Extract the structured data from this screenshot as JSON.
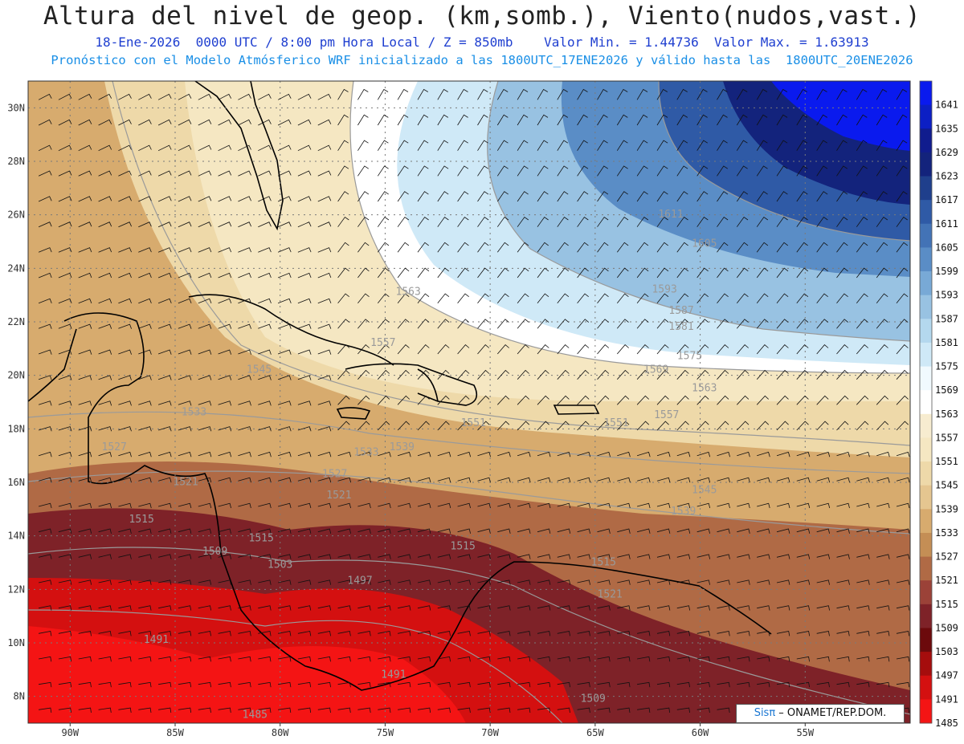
{
  "header": {
    "title": "Altura del nivel de geop. (km,somb.), Viento(nudos,vast.)",
    "subtitle_line1": "18-Ene-2026  0000 UTC / 8:00 pm Hora Local / Z = 850mb    Valor Min. = 1.44736  Valor Max. = 1.63913",
    "subtitle_line2": "Pronóstico con el Modelo Atmósferico WRF inicializado a las 1800UTC_17ENE2026 y válido hasta las  1800UTC_20ENE2026"
  },
  "map": {
    "lon_range": [
      -92,
      -50
    ],
    "lat_range": [
      7,
      31
    ],
    "lon_labels": [
      "90W",
      "85W",
      "80W",
      "75W",
      "70W",
      "65W",
      "60W",
      "55W"
    ],
    "lat_labels": [
      "8N",
      "10N",
      "12N",
      "14N",
      "16N",
      "18N",
      "20N",
      "22N",
      "24N",
      "26N",
      "28N",
      "30N"
    ],
    "grid": "dotted",
    "contour_labels": [
      {
        "text": "1611",
        "lon": -61.4,
        "lat": 25.9
      },
      {
        "text": "1605",
        "lon": -59.8,
        "lat": 24.8
      },
      {
        "text": "1593",
        "lon": -61.7,
        "lat": 23.1
      },
      {
        "text": "1587",
        "lon": -60.9,
        "lat": 22.3
      },
      {
        "text": "1581",
        "lon": -60.9,
        "lat": 21.7
      },
      {
        "text": "1575",
        "lon": -60.5,
        "lat": 20.6
      },
      {
        "text": "1569",
        "lon": -62.1,
        "lat": 20.1
      },
      {
        "text": "1563",
        "lon": -73.9,
        "lat": 23.0
      },
      {
        "text": "1563",
        "lon": -59.8,
        "lat": 19.4
      },
      {
        "text": "1557",
        "lon": -75.1,
        "lat": 21.1
      },
      {
        "text": "1557",
        "lon": -61.6,
        "lat": 18.4
      },
      {
        "text": "1551",
        "lon": -70.8,
        "lat": 18.1
      },
      {
        "text": "1551",
        "lon": -64.0,
        "lat": 18.1
      },
      {
        "text": "1545",
        "lon": -81.0,
        "lat": 20.1
      },
      {
        "text": "1545",
        "lon": -59.8,
        "lat": 15.6
      },
      {
        "text": "1539",
        "lon": -74.2,
        "lat": 17.2
      },
      {
        "text": "1539",
        "lon": -60.8,
        "lat": 14.8
      },
      {
        "text": "1533",
        "lon": -84.1,
        "lat": 18.5
      },
      {
        "text": "1533",
        "lon": -75.9,
        "lat": 17.0
      },
      {
        "text": "1527",
        "lon": -87.9,
        "lat": 17.2
      },
      {
        "text": "1527",
        "lon": -77.4,
        "lat": 16.2
      },
      {
        "text": "1521",
        "lon": -84.5,
        "lat": 15.9
      },
      {
        "text": "1521",
        "lon": -77.2,
        "lat": 15.4
      },
      {
        "text": "1521",
        "lon": -64.3,
        "lat": 11.7
      },
      {
        "text": "1515",
        "lon": -86.6,
        "lat": 14.5
      },
      {
        "text": "1515",
        "lon": -80.9,
        "lat": 13.8
      },
      {
        "text": "1515",
        "lon": -71.3,
        "lat": 13.5
      },
      {
        "text": "1515",
        "lon": -64.6,
        "lat": 12.9
      },
      {
        "text": "1509",
        "lon": -83.1,
        "lat": 13.3
      },
      {
        "text": "1509",
        "lon": -65.1,
        "lat": 7.8
      },
      {
        "text": "1503",
        "lon": -80.0,
        "lat": 12.8
      },
      {
        "text": "1497",
        "lon": -76.2,
        "lat": 12.2
      },
      {
        "text": "1491",
        "lon": -85.9,
        "lat": 10.0
      },
      {
        "text": "1491",
        "lon": -74.6,
        "lat": 8.7
      },
      {
        "text": "1485",
        "lon": -81.2,
        "lat": 7.2
      }
    ]
  },
  "colorbar": {
    "labels": [
      "1641",
      "1635",
      "1629",
      "1623",
      "1617",
      "1611",
      "1605",
      "1599",
      "1593",
      "1587",
      "1581",
      "1575",
      "1569",
      "1563",
      "1557",
      "1551",
      "1545",
      "1539",
      "1533",
      "1527",
      "1521",
      "1515",
      "1509",
      "1503",
      "1497",
      "1491",
      "1485"
    ],
    "colors": [
      "#0a1aee",
      "#0c1fc4",
      "#101c8e",
      "#13237c",
      "#1f3f8c",
      "#2f5aa6",
      "#4373b6",
      "#5a8dc6",
      "#78a9d6",
      "#98c2e2",
      "#b4d8ee",
      "#cfe9f7",
      "#f1fafe",
      "#ffffff",
      "#f7ecd0",
      "#f5e7c2",
      "#eed9a9",
      "#e5c690",
      "#d7ab6e",
      "#c48e55",
      "#b06a45",
      "#9b4238",
      "#7e2228",
      "#6c0a0c",
      "#a50d0d",
      "#d41010",
      "#f41414"
    ]
  },
  "credit": {
    "sis": "Sisπ",
    "text": " – ONAMET/REP.DOM."
  }
}
